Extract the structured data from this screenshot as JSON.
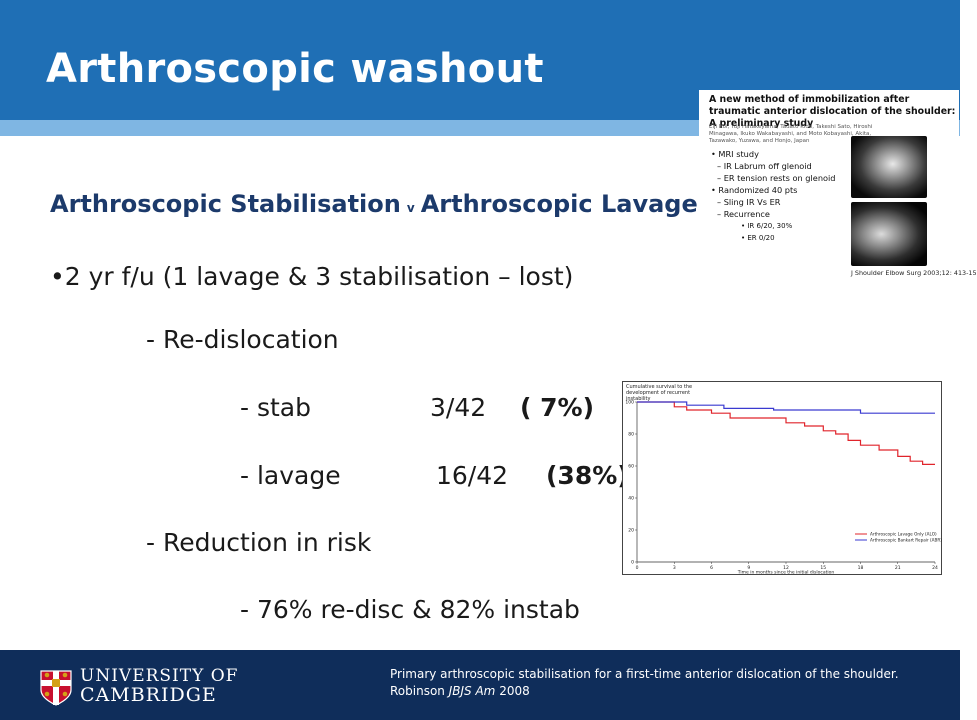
{
  "slide": {
    "title": "Arthroscopic washout",
    "subtitle_left": "Arthroscopic Stabilisation",
    "subtitle_v": "v",
    "subtitle_right": "Arthroscopic Lavage",
    "bullet_fu": "•2 yr f/u (1 lavage & 3 stabilisation – lost)",
    "redislocation": "- Re-dislocation",
    "stab_label": "- stab",
    "stab_value": "3/42",
    "stab_pct": "( 7%)",
    "lavage_label": "- lavage",
    "lavage_value": "16/42",
    "lavage_pct": "(38%)",
    "reduction": "- Reduction in risk",
    "reduction_values": "- 76% re-disc & 82% instab"
  },
  "paper": {
    "title": "A new method of immobilization after traumatic anterior dislocation of the shoulder: A preliminary study",
    "authors": "Eiji Itoi, Yuji Hatakeyama, Tadato Kido, Takeshi Sato, Hiroshi Minagawa, Ikuko Wakabayashi, and Moto Kobayashi, Akita, Tazawako, Yuzawa, and Honjo, Japan",
    "bullets": [
      {
        "level": 0,
        "text": "•  MRI study"
      },
      {
        "level": 1,
        "text": "– IR Labrum off glenoid"
      },
      {
        "level": 1,
        "text": "– ER tension rests on glenoid"
      },
      {
        "level": 0,
        "text": "•  Randomized 40 pts"
      },
      {
        "level": 1,
        "text": "– Sling IR Vs ER"
      },
      {
        "level": 1,
        "text": "– Recurrence"
      },
      {
        "level": 2,
        "text": "• IR 6/20, 30%"
      },
      {
        "level": 2,
        "text": "• ER 0/20"
      }
    ],
    "citation": "J Shoulder Elbow Surg 2003;12: 413-15"
  },
  "chart_data": {
    "type": "line",
    "title": "Cumulative survival to the development of recurrent instability",
    "xlabel": "Time in months since the initial dislocation",
    "xlim": [
      0,
      24
    ],
    "ylim": [
      0,
      100
    ],
    "xticks": [
      0,
      3,
      6,
      9,
      12,
      15,
      18,
      21,
      24
    ],
    "yticks": [
      0,
      20,
      40,
      60,
      80,
      100
    ],
    "legend_position": "bottom-right",
    "series": [
      {
        "name": "Arthroscopic Lavage Only (ALO)",
        "color": "#e0242b",
        "x": [
          0,
          3,
          3,
          4,
          4,
          6,
          6,
          7.5,
          7.5,
          12,
          12,
          13.5,
          13.5,
          15,
          15,
          16,
          16,
          17,
          17,
          18,
          18,
          19.5,
          19.5,
          21,
          21,
          22,
          22,
          23,
          23,
          24
        ],
        "y": [
          100,
          100,
          97,
          97,
          95,
          95,
          93,
          93,
          90,
          90,
          87,
          87,
          85,
          85,
          82,
          82,
          80,
          80,
          76,
          76,
          73,
          73,
          70,
          70,
          66,
          66,
          63,
          63,
          61,
          61
        ]
      },
      {
        "name": "Arthroscopic Bankart Repair (ABR)",
        "color": "#3a3ad0",
        "x": [
          0,
          4,
          4,
          7,
          7,
          11,
          11,
          18,
          18,
          23,
          23,
          24
        ],
        "y": [
          100,
          100,
          98,
          98,
          96,
          96,
          95,
          95,
          93,
          93,
          93,
          93
        ]
      }
    ]
  },
  "footer": {
    "university_line1": "UNIVERSITY OF",
    "university_line2": "CAMBRIDGE",
    "ref_line1": "Primary arthroscopic stabilisation for a first-time anterior dislocation of the shoulder.",
    "ref_author": "Robinson",
    "ref_journal": "JBJS Am",
    "ref_year": "2008"
  },
  "colors": {
    "header_blue": "#1f6fb5",
    "stripe_blue": "#7fb6e3",
    "footer_navy": "#0f2d5a",
    "subtitle_navy": "#1c3a6b"
  }
}
